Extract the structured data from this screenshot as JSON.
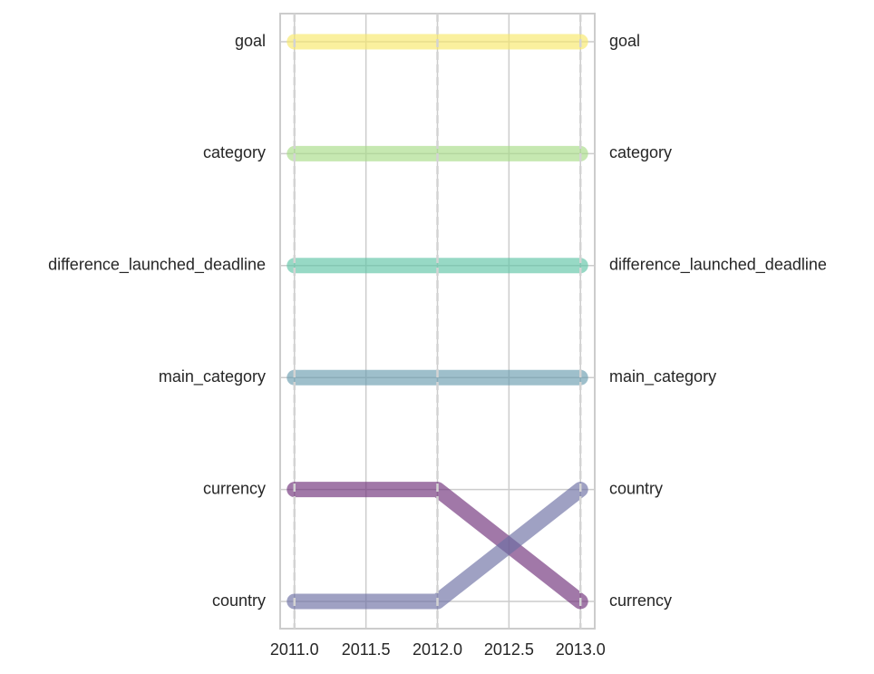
{
  "chart_data": {
    "type": "line",
    "title": "",
    "xlabel": "",
    "ylabel": "",
    "x": [
      2011.0,
      2012.0,
      2013.0
    ],
    "xlim": [
      2010.9,
      2013.1
    ],
    "x_ticks": [
      "2011.0",
      "2011.5",
      "2012.0",
      "2012.5",
      "2013.0"
    ],
    "x_tick_values": [
      2011.0,
      2011.5,
      2012.0,
      2012.5,
      2013.0
    ],
    "y_levels": 6,
    "left_labels": [
      "goal",
      "category",
      "difference_launched_deadline",
      "main_category",
      "currency",
      "country"
    ],
    "right_labels": [
      "goal",
      "category",
      "difference_launched_deadline",
      "main_category",
      "country",
      "currency"
    ],
    "grid": true,
    "legend": "none",
    "series": [
      {
        "key": "goal",
        "ranks": [
          1,
          1,
          1
        ],
        "color": "#f7e86a"
      },
      {
        "key": "category",
        "ranks": [
          2,
          2,
          2
        ],
        "color": "#a7dc87"
      },
      {
        "key": "difference_launched_deadline",
        "ranks": [
          3,
          3,
          3
        ],
        "color": "#5fc4a6"
      },
      {
        "key": "main_category",
        "ranks": [
          4,
          4,
          4
        ],
        "color": "#6a9caf"
      },
      {
        "key": "currency",
        "ranks": [
          5,
          5,
          6
        ],
        "color": "#6e307a"
      },
      {
        "key": "country",
        "ranks": [
          6,
          6,
          5
        ],
        "color": "#6c6fa3"
      }
    ]
  }
}
